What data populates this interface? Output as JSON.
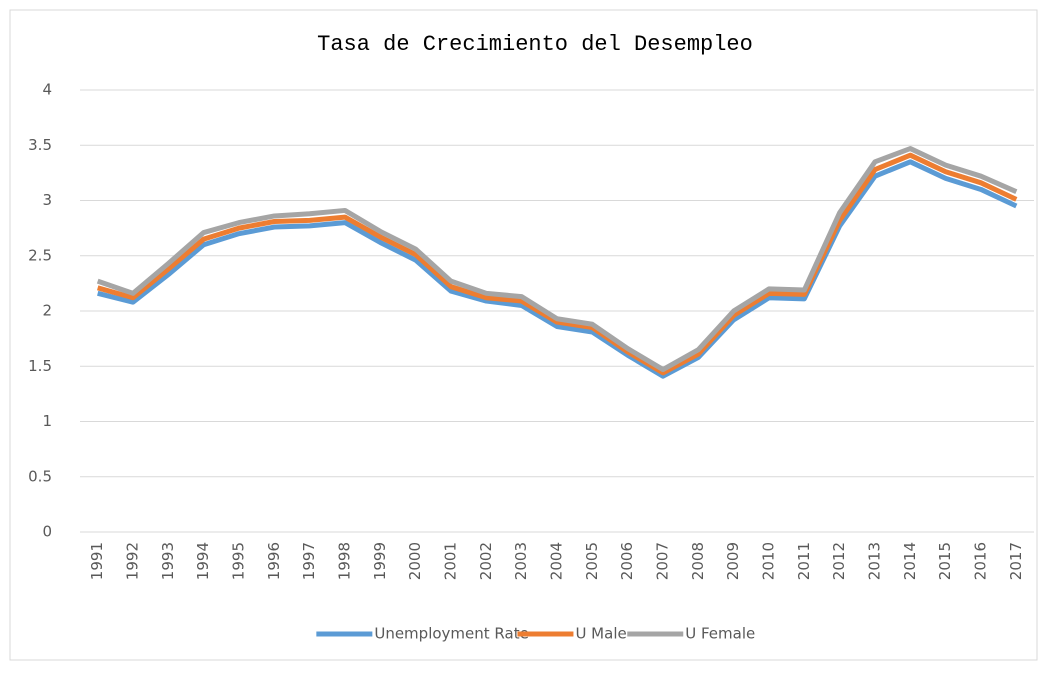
{
  "chart_data": {
    "type": "line",
    "title": "Tasa de Crecimiento del Desempleo",
    "categories": [
      "1991",
      "1992",
      "1993",
      "1994",
      "1995",
      "1996",
      "1997",
      "1998",
      "1999",
      "2000",
      "2001",
      "2002",
      "2003",
      "2004",
      "2005",
      "2006",
      "2007",
      "2008",
      "2009",
      "2010",
      "2011",
      "2012",
      "2013",
      "2014",
      "2015",
      "2016",
      "2017"
    ],
    "series": [
      {
        "name": "Unemployment Rate",
        "color": "#5b9bd5",
        "values": [
          2.16,
          2.08,
          2.33,
          2.6,
          2.7,
          2.76,
          2.77,
          2.8,
          2.62,
          2.46,
          2.18,
          2.09,
          2.05,
          1.86,
          1.81,
          1.6,
          1.41,
          1.58,
          1.92,
          2.12,
          2.11,
          2.77,
          3.22,
          3.35,
          3.2,
          3.1,
          2.95
        ]
      },
      {
        "name": "U Male",
        "color": "#ed7d31",
        "values": [
          2.21,
          2.12,
          2.38,
          2.65,
          2.75,
          2.81,
          2.82,
          2.85,
          2.67,
          2.51,
          2.22,
          2.12,
          2.09,
          1.9,
          1.85,
          1.63,
          1.44,
          1.61,
          1.96,
          2.16,
          2.15,
          2.82,
          3.28,
          3.41,
          3.26,
          3.16,
          3.01
        ]
      },
      {
        "name": "U Female",
        "color": "#a5a5a5",
        "values": [
          2.27,
          2.16,
          2.43,
          2.71,
          2.8,
          2.86,
          2.88,
          2.91,
          2.72,
          2.56,
          2.27,
          2.16,
          2.13,
          1.93,
          1.88,
          1.66,
          1.47,
          1.65,
          2.0,
          2.2,
          2.19,
          2.89,
          3.35,
          3.47,
          3.32,
          3.22,
          3.08
        ]
      }
    ],
    "ylim": [
      0,
      4
    ],
    "yticks": [
      0,
      0.5,
      1,
      1.5,
      2,
      2.5,
      3,
      3.5,
      4
    ],
    "grid": true,
    "legend": "bottom"
  }
}
